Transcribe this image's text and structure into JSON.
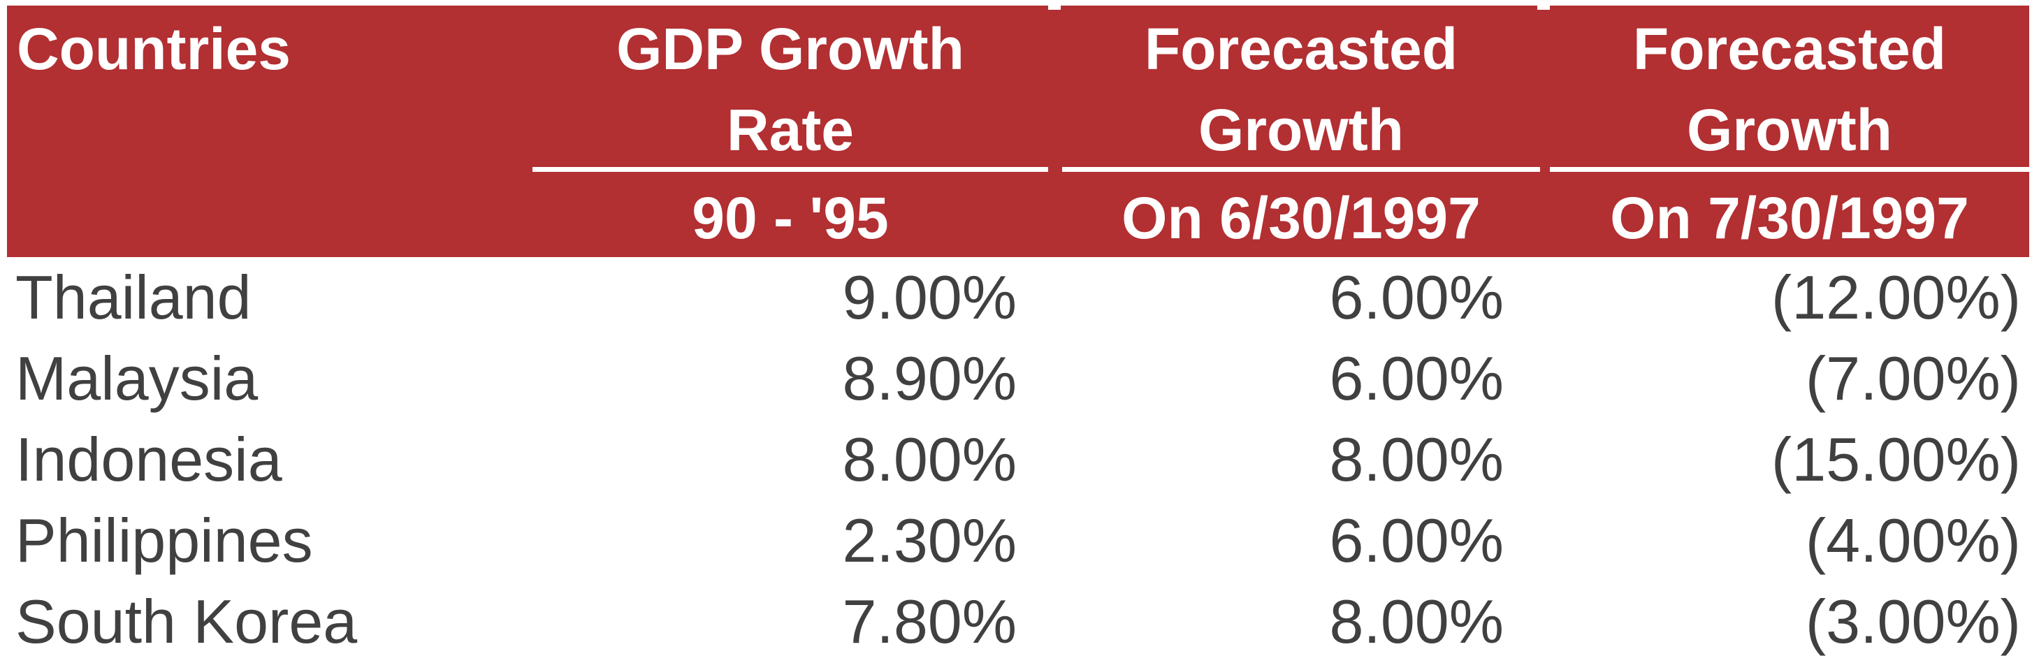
{
  "table": {
    "header": {
      "countries": "Countries",
      "col1": {
        "line1": "GDP Growth",
        "line2": "Rate",
        "sub": "90 - '95"
      },
      "col2": {
        "line1": "Forecasted",
        "line2": "Growth",
        "sub": "On 6/30/1997"
      },
      "col3": {
        "line1": "Forecasted",
        "line2": "Growth",
        "sub": "On 7/30/1997"
      }
    },
    "rows": [
      {
        "country": "Thailand",
        "gdp_90_95": "9.00%",
        "forecast_6_30_1997": "6.00%",
        "forecast_7_30_1997": "(12.00%)"
      },
      {
        "country": "Malaysia",
        "gdp_90_95": "8.90%",
        "forecast_6_30_1997": "6.00%",
        "forecast_7_30_1997": "(7.00%)"
      },
      {
        "country": "Indonesia",
        "gdp_90_95": "8.00%",
        "forecast_6_30_1997": "8.00%",
        "forecast_7_30_1997": "(15.00%)"
      },
      {
        "country": "Philippines",
        "gdp_90_95": "2.30%",
        "forecast_6_30_1997": "6.00%",
        "forecast_7_30_1997": "(4.00%)"
      },
      {
        "country": "South Korea",
        "gdp_90_95": "7.80%",
        "forecast_6_30_1997": "8.00%",
        "forecast_7_30_1997": "(3.00%)"
      }
    ]
  },
  "colors": {
    "header_bg": "#b22f32",
    "header_text": "#ffffff",
    "body_text": "#404040"
  }
}
